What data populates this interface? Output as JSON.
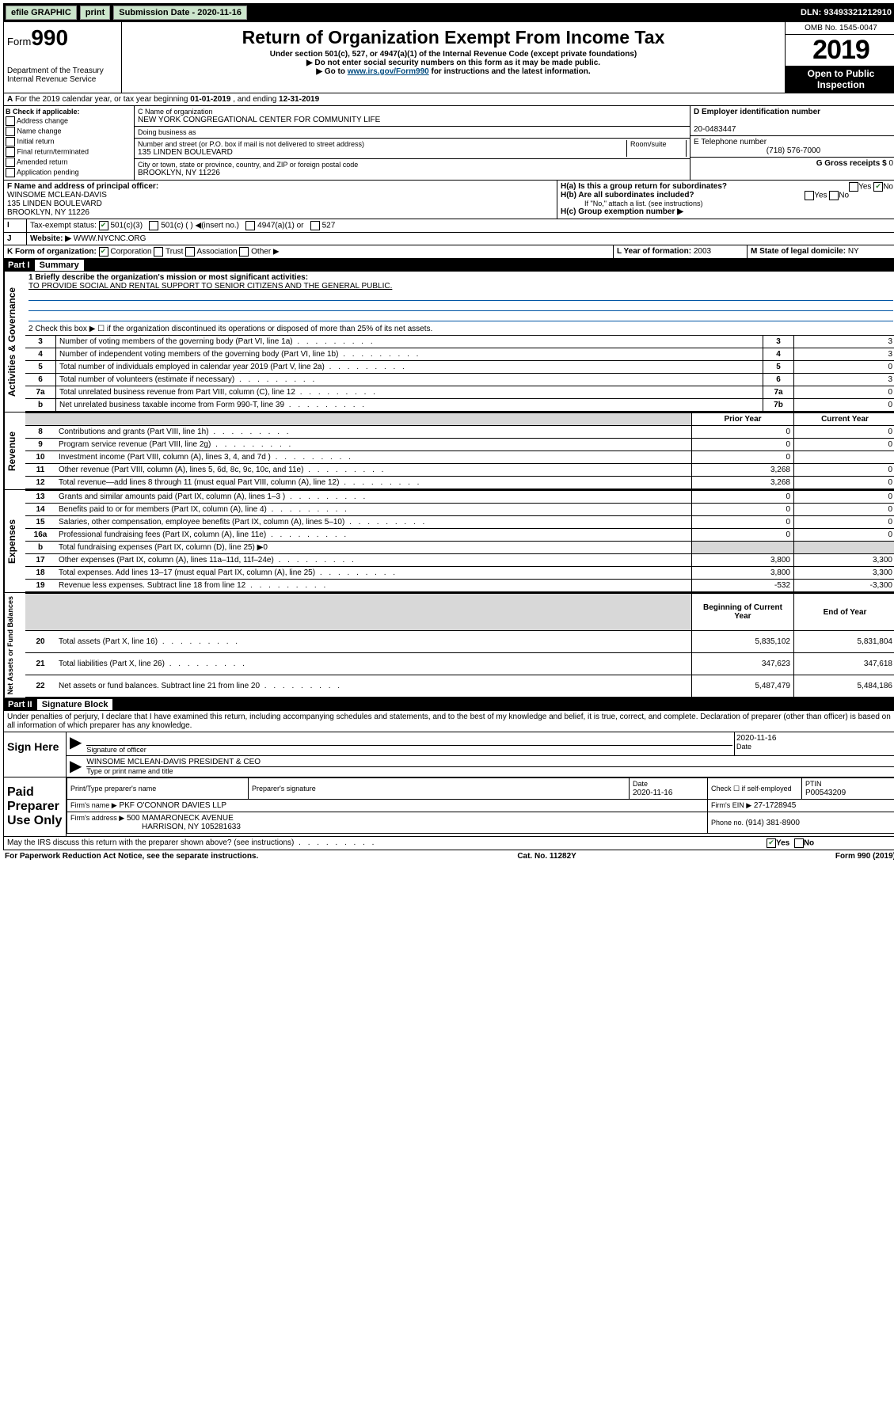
{
  "topbar": {
    "efile": "efile GRAPHIC",
    "print": "print",
    "submission_label": "Submission Date - ",
    "submission_date": "2020-11-16",
    "dln": "DLN: 93493321212910"
  },
  "header": {
    "form_prefix": "Form",
    "form_number": "990",
    "dept": "Department of the Treasury",
    "irs": "Internal Revenue Service",
    "title": "Return of Organization Exempt From Income Tax",
    "sub1": "Under section 501(c), 527, or 4947(a)(1) of the Internal Revenue Code (except private foundations)",
    "sub2": "▶ Do not enter social security numbers on this form as it may be made public.",
    "sub3_pre": "▶ Go to ",
    "sub3_link": "www.irs.gov/Form990",
    "sub3_post": " for instructions and the latest information.",
    "omb": "OMB No. 1545-0047",
    "year": "2019",
    "open": "Open to Public Inspection"
  },
  "periodA": {
    "text_pre": "For the 2019 calendar year, or tax year beginning ",
    "begin": "01-01-2019",
    "mid": " , and ending ",
    "end": "12-31-2019"
  },
  "sectionB": {
    "label": "B Check if applicable:",
    "items": [
      "Address change",
      "Name change",
      "Initial return",
      "Final return/terminated",
      "Amended return",
      "Application pending"
    ]
  },
  "sectionC": {
    "name_label": "C Name of organization",
    "name": "NEW YORK CONGREGATIONAL CENTER FOR COMMUNITY LIFE",
    "dba_label": "Doing business as",
    "street_label": "Number and street (or P.O. box if mail is not delivered to street address)",
    "room_label": "Room/suite",
    "street": "135 LINDEN BOULEVARD",
    "city_label": "City or town, state or province, country, and ZIP or foreign postal code",
    "city": "BROOKLYN, NY  11226"
  },
  "sectionD": {
    "label": "D Employer identification number",
    "value": "20-0483447"
  },
  "sectionE": {
    "label": "E Telephone number",
    "value": "(718) 576-7000"
  },
  "sectionG": {
    "label": "G Gross receipts $ ",
    "value": "0"
  },
  "sectionF": {
    "label": "F Name and address of principal officer:",
    "name": "WINSOME MCLEAN-DAVIS",
    "addr1": "135 LINDEN BOULEVARD",
    "addr2": "BROOKLYN, NY  11226"
  },
  "sectionH": {
    "a": "H(a) Is this a group return for subordinates?",
    "b": "H(b) Are all subordinates included?",
    "b_note": "If \"No,\" attach a list. (see instructions)",
    "c": "H(c) Group exemption number ▶",
    "yes": "Yes",
    "no": "No"
  },
  "sectionI": {
    "label": "Tax-exempt status:",
    "opt1": "501(c)(3)",
    "opt2": "501(c) (  ) ◀(insert no.)",
    "opt3": "4947(a)(1) or",
    "opt4": "527"
  },
  "sectionJ": {
    "label": "Website: ▶",
    "value": "WWW.NYCNC.ORG"
  },
  "sectionK": {
    "label": "K Form of organization:",
    "opts": [
      "Corporation",
      "Trust",
      "Association",
      "Other ▶"
    ]
  },
  "sectionL": {
    "label": "L Year of formation: ",
    "value": "2003"
  },
  "sectionM": {
    "label": "M State of legal domicile: ",
    "value": "NY"
  },
  "part1": {
    "header": "Part I",
    "title": "Summary",
    "line1_label": "1 Briefly describe the organization's mission or most significant activities:",
    "line1_value": "TO PROVIDE SOCIAL AND RENTAL SUPPORT TO SENIOR CITIZENS AND THE GENERAL PUBLIC.",
    "line2": "2 Check this box ▶ ☐ if the organization discontinued its operations or disposed of more than 25% of its net assets.",
    "vert1": "Activities & Governance",
    "vert2": "Revenue",
    "vert3": "Expenses",
    "vert4": "Net Assets or Fund Balances",
    "lines_gov": [
      {
        "n": "3",
        "t": "Number of voting members of the governing body (Part VI, line 1a)",
        "rn": "3",
        "v": "3"
      },
      {
        "n": "4",
        "t": "Number of independent voting members of the governing body (Part VI, line 1b)",
        "rn": "4",
        "v": "3"
      },
      {
        "n": "5",
        "t": "Total number of individuals employed in calendar year 2019 (Part V, line 2a)",
        "rn": "5",
        "v": "0"
      },
      {
        "n": "6",
        "t": "Total number of volunteers (estimate if necessary)",
        "rn": "6",
        "v": "3"
      },
      {
        "n": "7a",
        "t": "Total unrelated business revenue from Part VIII, column (C), line 12",
        "rn": "7a",
        "v": "0"
      },
      {
        "n": "b",
        "t": "Net unrelated business taxable income from Form 990-T, line 39",
        "rn": "7b",
        "v": "0"
      }
    ],
    "col_prior": "Prior Year",
    "col_current": "Current Year",
    "lines_rev": [
      {
        "n": "8",
        "t": "Contributions and grants (Part VIII, line 1h)",
        "p": "0",
        "c": "0"
      },
      {
        "n": "9",
        "t": "Program service revenue (Part VIII, line 2g)",
        "p": "0",
        "c": "0"
      },
      {
        "n": "10",
        "t": "Investment income (Part VIII, column (A), lines 3, 4, and 7d )",
        "p": "0",
        "c": ""
      },
      {
        "n": "11",
        "t": "Other revenue (Part VIII, column (A), lines 5, 6d, 8c, 9c, 10c, and 11e)",
        "p": "3,268",
        "c": "0"
      },
      {
        "n": "12",
        "t": "Total revenue—add lines 8 through 11 (must equal Part VIII, column (A), line 12)",
        "p": "3,268",
        "c": "0"
      }
    ],
    "lines_exp": [
      {
        "n": "13",
        "t": "Grants and similar amounts paid (Part IX, column (A), lines 1–3 )",
        "p": "0",
        "c": "0"
      },
      {
        "n": "14",
        "t": "Benefits paid to or for members (Part IX, column (A), line 4)",
        "p": "0",
        "c": "0"
      },
      {
        "n": "15",
        "t": "Salaries, other compensation, employee benefits (Part IX, column (A), lines 5–10)",
        "p": "0",
        "c": "0"
      },
      {
        "n": "16a",
        "t": "Professional fundraising fees (Part IX, column (A), line 11e)",
        "p": "0",
        "c": "0"
      },
      {
        "n": "b",
        "t": "Total fundraising expenses (Part IX, column (D), line 25) ▶0",
        "p": "",
        "c": "",
        "shaded": true
      },
      {
        "n": "17",
        "t": "Other expenses (Part IX, column (A), lines 11a–11d, 11f–24e)",
        "p": "3,800",
        "c": "3,300"
      },
      {
        "n": "18",
        "t": "Total expenses. Add lines 13–17 (must equal Part IX, column (A), line 25)",
        "p": "3,800",
        "c": "3,300"
      },
      {
        "n": "19",
        "t": "Revenue less expenses. Subtract line 18 from line 12",
        "p": "-532",
        "c": "-3,300"
      }
    ],
    "col_begin": "Beginning of Current Year",
    "col_end": "End of Year",
    "lines_net": [
      {
        "n": "20",
        "t": "Total assets (Part X, line 16)",
        "p": "5,835,102",
        "c": "5,831,804"
      },
      {
        "n": "21",
        "t": "Total liabilities (Part X, line 26)",
        "p": "347,623",
        "c": "347,618"
      },
      {
        "n": "22",
        "t": "Net assets or fund balances. Subtract line 21 from line 20",
        "p": "5,487,479",
        "c": "5,484,186"
      }
    ]
  },
  "part2": {
    "header": "Part II",
    "title": "Signature Block",
    "perjury": "Under penalties of perjury, I declare that I have examined this return, including accompanying schedules and statements, and to the best of my knowledge and belief, it is true, correct, and complete. Declaration of preparer (other than officer) is based on all information of which preparer has any knowledge.",
    "sign_here": "Sign Here",
    "sig_officer": "Signature of officer",
    "sig_date": "2020-11-16",
    "date_label": "Date",
    "officer_name": "WINSOME MCLEAN-DAVIS  PRESIDENT & CEO",
    "type_name": "Type or print name and title",
    "paid": "Paid Preparer Use Only",
    "prep_name_label": "Print/Type preparer's name",
    "prep_sig_label": "Preparer's signature",
    "prep_date": "2020-11-16",
    "check_self": "Check ☐ if self-employed",
    "ptin_label": "PTIN",
    "ptin": "P00543209",
    "firm_name_label": "Firm's name    ▶",
    "firm_name": "PKF O'CONNOR DAVIES LLP",
    "firm_ein_label": "Firm's EIN ▶",
    "firm_ein": "27-1728945",
    "firm_addr_label": "Firm's address ▶",
    "firm_addr1": "500 MAMARONECK AVENUE",
    "firm_addr2": "HARRISON, NY  105281633",
    "phone_label": "Phone no. ",
    "phone": "(914) 381-8900",
    "discuss": "May the IRS discuss this return with the preparer shown above? (see instructions)",
    "yes": "Yes",
    "no": "No"
  },
  "footer": {
    "left": "For Paperwork Reduction Act Notice, see the separate instructions.",
    "mid": "Cat. No. 11282Y",
    "right": "Form 990 (2019)"
  }
}
